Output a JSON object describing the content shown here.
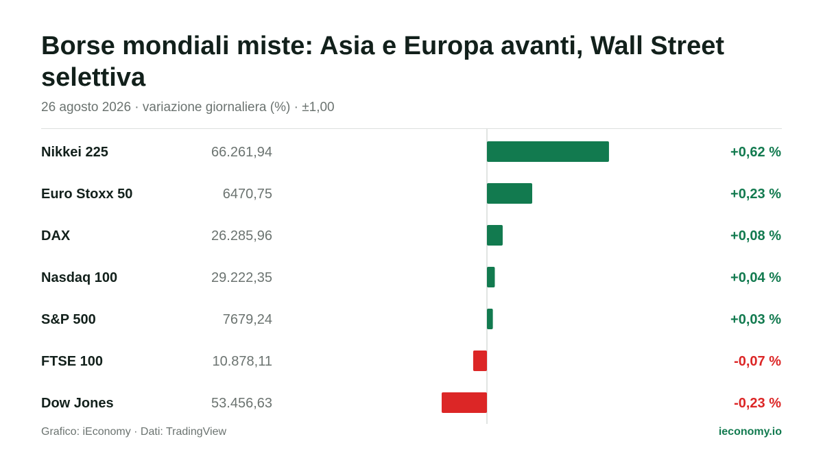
{
  "header": {
    "title": "Borse mondiali miste: Asia e Europa avanti, Wall Street selettiva",
    "subtitle": "26 agosto 2026 · variazione giornaliera (%) · ±1,00"
  },
  "footer": {
    "source": "Grafico: iEconomy · Dati: TradingView",
    "brand": "ieconomy.io"
  },
  "colors": {
    "positive": "#127a4f",
    "negative": "#dc2626",
    "axis": "#d7dbd9"
  },
  "chart_data": {
    "type": "bar",
    "orientation": "horizontal",
    "xlim": [
      -1,
      1
    ],
    "grid": false,
    "categories": [
      "Nikkei 225",
      "Euro Stoxx 50",
      "DAX",
      "Nasdaq 100",
      "S&P 500",
      "FTSE 100",
      "Dow Jones"
    ],
    "index_levels": [
      "66.261,94",
      "6470,75",
      "26.285,96",
      "29.222,35",
      "7679,24",
      "10.878,11",
      "53.456,63"
    ],
    "values": [
      0.62,
      0.23,
      0.08,
      0.04,
      0.03,
      -0.07,
      -0.23
    ],
    "value_labels": [
      "+0,62 %",
      "+0,23 %",
      "+0,08 %",
      "+0,04 %",
      "+0,03 %",
      "-0,07 %",
      "-0,23 %"
    ]
  }
}
